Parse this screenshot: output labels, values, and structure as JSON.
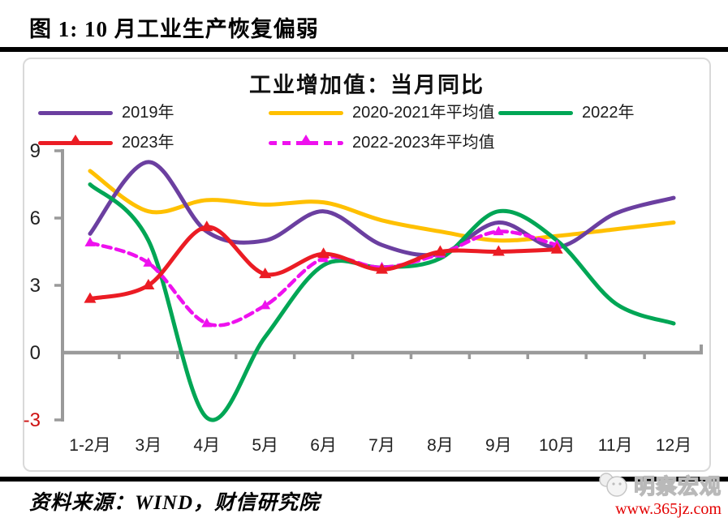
{
  "page": {
    "title": "图 1:  10 月工业生产恢复偏弱",
    "source": "资料来源：WIND，财信研究院",
    "watermark": {
      "brand": "明察宏观",
      "url": "www.365jz.com"
    }
  },
  "chart_data": {
    "type": "line",
    "title": "工业增加值：当月同比",
    "categories": [
      "1-2月",
      "3月",
      "4月",
      "5月",
      "6月",
      "7月",
      "8月",
      "9月",
      "10月",
      "11月",
      "12月"
    ],
    "y_ticks": [
      9,
      6,
      3,
      0,
      -3
    ],
    "ylim": [
      -3,
      9
    ],
    "grid": false,
    "legend_position": "top",
    "axis_color": "#9A9A9A",
    "tick_label_color": "#222222",
    "negative_tick_color": "#CE1212",
    "series": [
      {
        "name": "2019年",
        "color": "#6B3FA0",
        "style": "solid",
        "marker": "none",
        "values": [
          5.3,
          8.5,
          5.4,
          5.0,
          6.3,
          4.8,
          4.4,
          5.8,
          4.7,
          6.2,
          6.9
        ]
      },
      {
        "name": "2020-2021年平均值",
        "color": "#FFC000",
        "style": "solid",
        "marker": "none",
        "values": [
          8.1,
          6.3,
          6.8,
          6.6,
          6.7,
          5.9,
          5.4,
          5.0,
          5.2,
          5.5,
          5.8
        ]
      },
      {
        "name": "2022年",
        "color": "#00A655",
        "style": "solid",
        "marker": "none",
        "values": [
          7.5,
          5.0,
          -2.9,
          0.7,
          3.9,
          3.8,
          4.2,
          6.3,
          5.0,
          2.2,
          1.3
        ]
      },
      {
        "name": "2023年",
        "color": "#EB1C24",
        "style": "solid",
        "marker": "triangle",
        "values": [
          2.4,
          3.0,
          5.6,
          3.5,
          4.4,
          3.7,
          4.5,
          4.5,
          4.6
        ]
      },
      {
        "name": "2022-2023年平均值",
        "color": "#EE11EE",
        "style": "dashed",
        "marker": "triangle",
        "values": [
          4.9,
          4.0,
          1.3,
          2.1,
          4.2,
          3.8,
          4.4,
          5.4,
          4.8
        ]
      }
    ]
  }
}
